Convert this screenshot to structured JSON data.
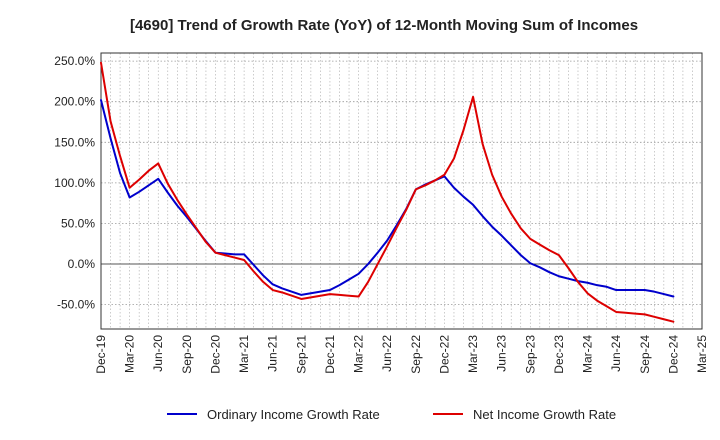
{
  "chart_data": {
    "type": "line",
    "title": "[4690]  Trend of Growth Rate (YoY) of 12-Month Moving Sum of Incomes",
    "xlabel": "",
    "ylabel": "",
    "ylim": [
      -80,
      260
    ],
    "yticks": [
      -50,
      0,
      50,
      100,
      150,
      200,
      250
    ],
    "ytick_labels": [
      "-50.0%",
      "0.0%",
      "50.0%",
      "100.0%",
      "150.0%",
      "200.0%",
      "250.0%"
    ],
    "xtick_labels": [
      "Dec-19",
      "Mar-20",
      "Jun-20",
      "Sep-20",
      "Dec-20",
      "Mar-21",
      "Jun-21",
      "Sep-21",
      "Dec-21",
      "Mar-22",
      "Jun-22",
      "Sep-22",
      "Dec-22",
      "Mar-23",
      "Jun-23",
      "Sep-23",
      "Dec-23",
      "Mar-24",
      "Jun-24",
      "Sep-24",
      "Dec-24",
      "Mar-25"
    ],
    "x": [
      "2019-12",
      "2020-01",
      "2020-02",
      "2020-03",
      "2020-04",
      "2020-05",
      "2020-06",
      "2020-07",
      "2020-08",
      "2020-09",
      "2020-10",
      "2020-11",
      "2020-12",
      "2021-01",
      "2021-02",
      "2021-03",
      "2021-04",
      "2021-05",
      "2021-06",
      "2021-07",
      "2021-08",
      "2021-09",
      "2021-10",
      "2021-11",
      "2021-12",
      "2022-01",
      "2022-02",
      "2022-03",
      "2022-04",
      "2022-05",
      "2022-06",
      "2022-07",
      "2022-08",
      "2022-09",
      "2022-10",
      "2022-11",
      "2022-12",
      "2023-01",
      "2023-02",
      "2023-03",
      "2023-04",
      "2023-05",
      "2023-06",
      "2023-07",
      "2023-08",
      "2023-09",
      "2023-10",
      "2023-11",
      "2023-12",
      "2024-01",
      "2024-02",
      "2024-03",
      "2024-04",
      "2024-05",
      "2024-06",
      "2024-07",
      "2024-08",
      "2024-09",
      "2024-10",
      "2024-11",
      "2024-12"
    ],
    "grid": true,
    "legend_position": "bottom",
    "series": [
      {
        "name": "Ordinary Income Growth Rate",
        "color": "#0000cc",
        "values": [
          202,
          155,
          112,
          82,
          89,
          97,
          105,
          88,
          72,
          58,
          43,
          28,
          14,
          13,
          12,
          12,
          -1,
          -14,
          -25,
          -30,
          -34,
          -38,
          -36,
          -34,
          -32,
          -26,
          -19,
          -12,
          0,
          14,
          29,
          48,
          68,
          92,
          98,
          103,
          108,
          94,
          83,
          73,
          59,
          46,
          35,
          23,
          11,
          1,
          -4,
          -10,
          -15,
          -18,
          -21,
          -23,
          -26,
          -28,
          -32,
          -32,
          -32,
          -32,
          -34,
          -37,
          -40
        ]
      },
      {
        "name": "Net Income Growth Rate",
        "color": "#dd0000",
        "values": [
          248,
          176,
          133,
          94,
          104,
          115,
          124,
          99,
          79,
          61,
          44,
          27,
          14,
          11,
          8,
          5,
          -9,
          -22,
          -32,
          -35,
          -39,
          -43,
          -41,
          -39,
          -37,
          -38,
          -39,
          -40,
          -22,
          0,
          22,
          45,
          67,
          92,
          97,
          103,
          110,
          130,
          165,
          206,
          148,
          110,
          83,
          62,
          44,
          31,
          24,
          17,
          11,
          -5,
          -22,
          -36,
          -45,
          -52,
          -59,
          -60,
          -61,
          -62,
          -65,
          -68,
          -71
        ]
      }
    ]
  }
}
